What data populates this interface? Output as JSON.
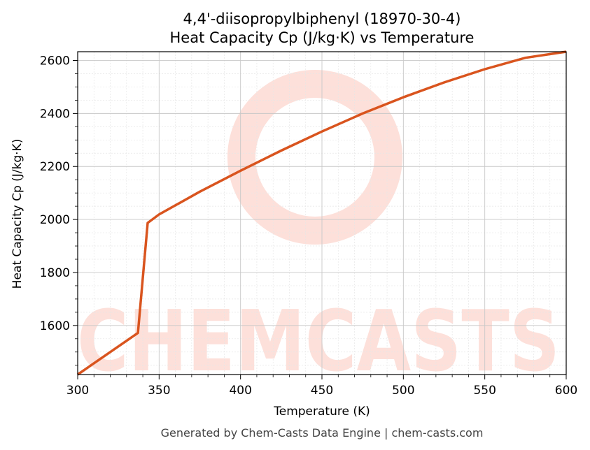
{
  "chart_data": {
    "type": "line",
    "title_line1": "4,4'-diisopropylbiphenyl (18970-30-4)",
    "title_line2": "Heat Capacity Cp (J/kg·K) vs Temperature",
    "xlabel": "Temperature (K)",
    "ylabel": "Heat Capacity Cp (J/kg·K)",
    "xlim": [
      300,
      600
    ],
    "ylim": [
      1415,
      2633
    ],
    "x_ticks": [
      300,
      350,
      400,
      450,
      500,
      550,
      600
    ],
    "y_ticks": [
      1600,
      1800,
      2000,
      2200,
      2400,
      2600
    ],
    "grid": true,
    "line_color": "#d9541e",
    "series": [
      {
        "x": [
          300,
          337,
          343,
          350,
          375,
          400,
          425,
          450,
          475,
          500,
          525,
          550,
          575,
          600
        ],
        "y": [
          1415,
          1572,
          1987,
          2019,
          2105,
          2184,
          2260,
          2332,
          2400,
          2461,
          2517,
          2567,
          2610,
          2633
        ]
      }
    ]
  },
  "watermark": {
    "text": "CHEMCASTS",
    "color": "#fde0da"
  },
  "footer": "Generated by Chem-Casts Data Engine | chem-casts.com"
}
